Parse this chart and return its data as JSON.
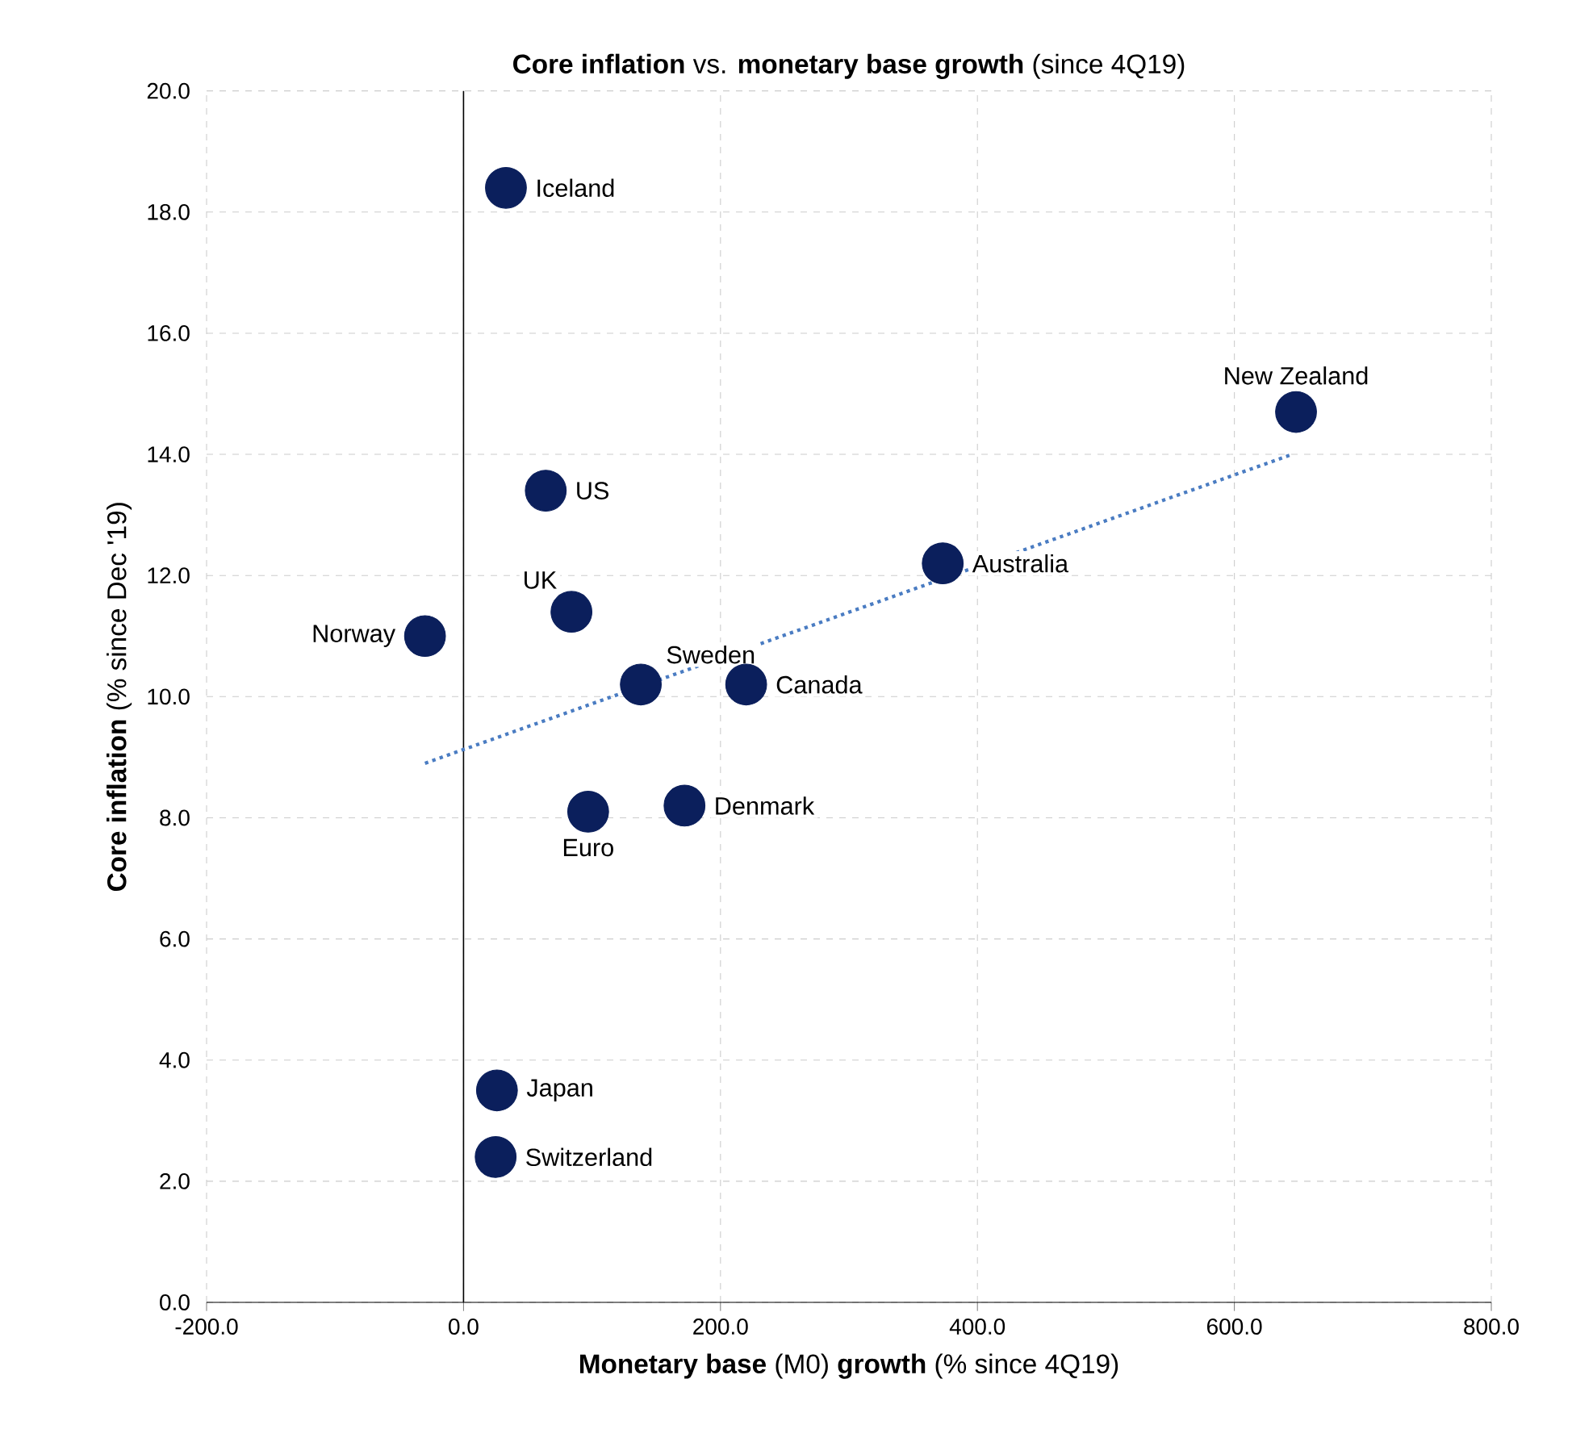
{
  "chart_data": {
    "type": "scatter",
    "title": "**Core inflation** vs. **monetary base growth** (since 4Q19)",
    "xlabel": "**Monetary base** (M0) **growth** (% since 4Q19)",
    "ylabel": "**Core inflation** (% since Dec '19)",
    "xlim": [
      -200,
      800
    ],
    "ylim": [
      0,
      20
    ],
    "xticks": [
      {
        "value": -200,
        "label": "-200.0"
      },
      {
        "value": 0,
        "label": "0.0"
      },
      {
        "value": 200,
        "label": "200.0"
      },
      {
        "value": 400,
        "label": "400.0"
      },
      {
        "value": 600,
        "label": "600.0"
      },
      {
        "value": 800,
        "label": "800.0"
      }
    ],
    "yticks": [
      {
        "value": 0,
        "label": "0.0"
      },
      {
        "value": 2,
        "label": "2.0"
      },
      {
        "value": 4,
        "label": "4.0"
      },
      {
        "value": 6,
        "label": "6.0"
      },
      {
        "value": 8,
        "label": "8.0"
      },
      {
        "value": 10,
        "label": "10.0"
      },
      {
        "value": 12,
        "label": "12.0"
      },
      {
        "value": 14,
        "label": "14.0"
      },
      {
        "value": 16,
        "label": "16.0"
      },
      {
        "value": 18,
        "label": "18.0"
      },
      {
        "value": 20,
        "label": "20.0"
      }
    ],
    "grid": true,
    "series": [
      {
        "type": "scatter",
        "marker": "circle",
        "color": "#0b1f5c",
        "x": [
          33,
          648,
          64,
          373,
          84,
          -30,
          138,
          220,
          97,
          172,
          26,
          25
        ],
        "values": [
          18.4,
          14.7,
          13.4,
          12.2,
          11.4,
          11.0,
          10.2,
          10.2,
          8.1,
          8.2,
          3.5,
          2.4
        ]
      },
      {
        "type": "line",
        "color": "#4a7cc2",
        "line_style": "dotted",
        "marker": "none",
        "x": [
          -30,
          645
        ],
        "values": [
          8.9,
          14.0
        ]
      }
    ],
    "annotations": [
      {
        "text": "Iceland",
        "x": 33,
        "y": 18.4
      },
      {
        "text": "New Zealand",
        "x": 648,
        "y": 14.7
      },
      {
        "text": "US",
        "x": 64,
        "y": 13.4
      },
      {
        "text": "Australia",
        "x": 373,
        "y": 12.2
      },
      {
        "text": "UK",
        "x": 84,
        "y": 11.4
      },
      {
        "text": "Norway",
        "x": -30,
        "y": 11.0
      },
      {
        "text": "Sweden",
        "x": 138,
        "y": 10.2
      },
      {
        "text": "Canada",
        "x": 220,
        "y": 10.2
      },
      {
        "text": "Euro",
        "x": 97,
        "y": 8.1
      },
      {
        "text": "Denmark",
        "x": 172,
        "y": 8.2
      },
      {
        "text": "Japan",
        "x": 26,
        "y": 3.5
      },
      {
        "text": "Switzerland",
        "x": 25,
        "y": 2.4
      }
    ]
  }
}
